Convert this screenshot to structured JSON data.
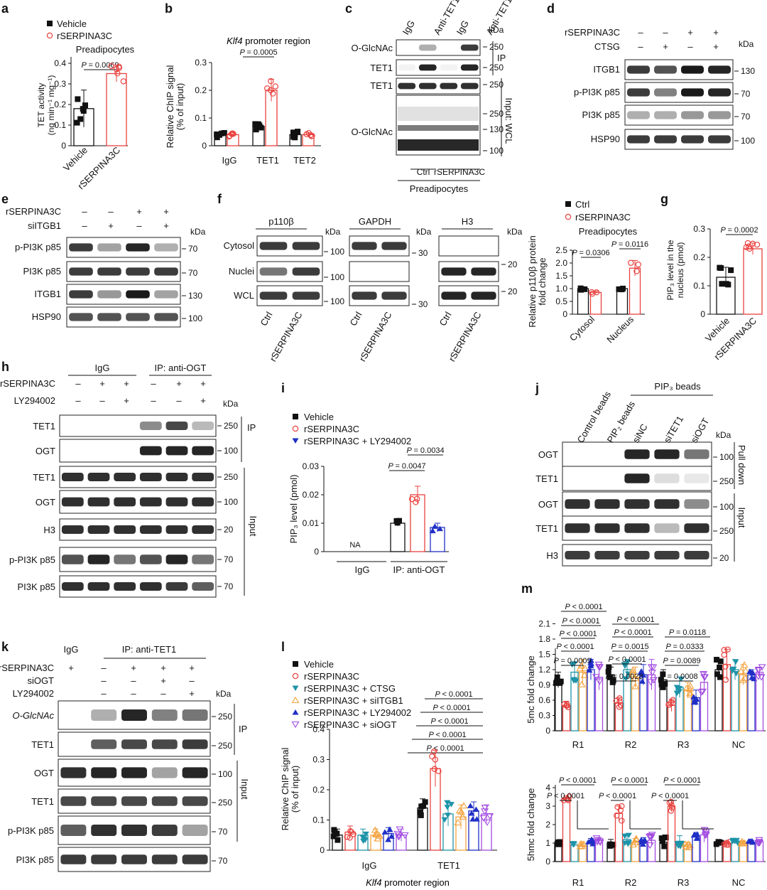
{
  "colors": {
    "red": "#e8423f",
    "teal": "#1e93a8",
    "orange": "#f4a340",
    "blue": "#1f2fc6",
    "purple": "#a24be0",
    "black": "#111111"
  },
  "panels": {
    "a": {
      "letter": "a",
      "legend": [
        "Vehicle",
        "rSERPINA3C"
      ],
      "subtitle": "Preadipocytes",
      "pval": "= 0.0069",
      "ylabel": [
        "TET activity",
        "(ng min⁻¹ mg⁻¹)"
      ],
      "ticks": [
        "0",
        "0.1",
        "0.2",
        "0.3",
        "0.4"
      ],
      "xlabels": [
        "Vehicle",
        "rSERPINA3C"
      ]
    },
    "b": {
      "letter": "b",
      "title_italic": "Klf4",
      "title_rest": " promoter region",
      "ylabel": [
        "Relative ChIP signal",
        "(% of input)"
      ],
      "ticks": [
        "0",
        "0.1",
        "0.2",
        "0.3"
      ],
      "pval": "= 0.0005",
      "xlabels": [
        "IgG",
        "TET1",
        "TET2"
      ]
    },
    "c": {
      "letter": "c",
      "lanes": [
        "IgG",
        "Anti-TET1",
        "IgG",
        "Anti-TET1"
      ],
      "kda": "kDa",
      "rows": [
        "O-GlcNAc",
        "TET1",
        "TET1",
        "O-GlcNAc"
      ],
      "markers": [
        "250",
        "250",
        "250",
        "250",
        "130",
        "100"
      ],
      "ip": "IP",
      "input": "Input: WCL",
      "groups": [
        "Ctrl",
        "rSERPINA3C"
      ],
      "cell": "Preadipocytes"
    },
    "d": {
      "letter": "d",
      "conds": [
        "rSERPINA3C",
        "CTSG"
      ],
      "signs": [
        [
          "–",
          "–",
          "+",
          "+"
        ],
        [
          "–",
          "+",
          "–",
          "+"
        ]
      ],
      "kda": "kDa",
      "rows": [
        "ITGB1",
        "p-PI3K p85",
        "PI3K p85",
        "HSP90"
      ],
      "markers": [
        "130",
        "70",
        "70",
        "100"
      ]
    },
    "e": {
      "letter": "e",
      "conds": [
        "rSERPINA3C",
        "siITGB1"
      ],
      "signs": [
        [
          "–",
          "–",
          "+",
          "+"
        ],
        [
          "–",
          "+",
          "–",
          "+"
        ]
      ],
      "kda": "kDa",
      "rows": [
        "p-PI3K p85",
        "PI3K p85",
        "ITGB1",
        "HSP90"
      ],
      "markers": [
        "70",
        "70",
        "130",
        "100"
      ]
    },
    "f": {
      "letter": "f",
      "heads": [
        "p110β",
        "GAPDH",
        "H3"
      ],
      "rows": [
        "Cytosol",
        "Nuclei",
        "WCL"
      ],
      "kda": "kDa",
      "m1": [
        "100",
        "100",
        "100"
      ],
      "m2": [
        "30",
        "30"
      ],
      "m3": [
        "20",
        "20"
      ],
      "lanes": [
        "Ctrl",
        "rSERPINA3C"
      ],
      "legend": [
        "Ctrl",
        "rSERPINA3C"
      ],
      "subtitle": "Preadipocytes",
      "ylabel": [
        "Relative p110β protein",
        "fold change"
      ],
      "ticks": [
        "0",
        "0.5",
        "1.0",
        "1.5",
        "2.0",
        "2.5"
      ],
      "pvals": [
        "= 0.0306",
        "= 0.0116"
      ],
      "xlabels": [
        "Cytosol",
        "Nucleus"
      ]
    },
    "g": {
      "letter": "g",
      "ylabel": [
        "PIP₃ level in the",
        "nucleus (pmol)"
      ],
      "ticks": [
        "0",
        "0.1",
        "0.2",
        "0.3"
      ],
      "pval": "= 0.0002",
      "xlabels": [
        "Vehicle",
        "rSERPINA3C"
      ]
    },
    "h": {
      "letter": "h",
      "groups": [
        "IgG",
        "IP: anti-OGT"
      ],
      "conds": [
        "rSERPINA3C",
        "LY294002"
      ],
      "signs": [
        [
          "–",
          "+",
          "+",
          "–",
          "+",
          "+"
        ],
        [
          "–",
          "–",
          "+",
          "–",
          "–",
          "+"
        ]
      ],
      "kda": "kDa",
      "rows": [
        "TET1",
        "OGT",
        "TET1",
        "OGT",
        "H3",
        "p-PI3K p85",
        "PI3K p85"
      ],
      "markers": [
        "250",
        "100",
        "250",
        "100",
        "20",
        "70",
        "70"
      ],
      "ip": "IP",
      "input": "Input"
    },
    "i": {
      "letter": "i",
      "legend": [
        "Vehicle",
        "rSERPINA3C",
        "rSERPINA3C + LY294002"
      ],
      "pvals": [
        "= 0.0034",
        "= 0.0047"
      ],
      "ylabel": "PIP₃ level (pmol)",
      "ticks": [
        "0",
        "0.01",
        "0.02",
        "0.03"
      ],
      "na": "NA",
      "xlabels": [
        "IgG",
        "IP: anti-OGT"
      ]
    },
    "j": {
      "letter": "j",
      "lanes": [
        "Control beads",
        "PIP₂ beads",
        "siNC",
        "siTET1",
        "siOGT"
      ],
      "group": "PIP₃ beads",
      "kda": "kDa",
      "rows": [
        "OGT",
        "TET1",
        "OGT",
        "TET1",
        "H3"
      ],
      "markers": [
        "100",
        "250",
        "100",
        "250",
        "20"
      ],
      "pulldown": "Pull down",
      "input": "Input"
    },
    "k": {
      "letter": "k",
      "igg": "IgG",
      "group": "IP: anti-TET1",
      "conds": [
        "rSERPINA3C",
        "siOGT",
        "LY294002"
      ],
      "signs": [
        [
          "+",
          "–",
          "+",
          "+",
          "+"
        ],
        [
          "",
          "–",
          "–",
          "+",
          "–"
        ],
        [
          "",
          "–",
          "–",
          "–",
          "+"
        ]
      ],
      "kda": "kDa",
      "rows": [
        "O-GlcNAc",
        "TET1",
        "OGT",
        "TET1",
        "p-PI3K p85",
        "PI3K p85"
      ],
      "markers": [
        "250",
        "250",
        "100",
        "250",
        "70",
        "70"
      ],
      "ip": "IP",
      "input": "Input"
    },
    "l": {
      "letter": "l",
      "legend": [
        "Vehicle",
        "rSERPINA3C",
        "rSERPINA3C + CTSG",
        "rSERPINA3C + siITGB1",
        "rSERPINA3C + LY294002",
        "rSERPINA3C + siOGT"
      ],
      "pvals": [
        "< 0.0001",
        "< 0.0001",
        "< 0.0001",
        "< 0.0001",
        "< 0.0001"
      ],
      "ylabel": [
        "Relative ChIP signal",
        "(% of input)"
      ],
      "ticks": [
        "0",
        "0.1",
        "0.2",
        "0.3",
        "0.4"
      ],
      "xlabels": [
        "IgG",
        "TET1"
      ],
      "xtitle_italic": "Klf4",
      "xtitle_rest": " promoter region"
    },
    "m": {
      "letter": "m",
      "top_ylabel": "5mc fold change",
      "top_ticks": [
        "0",
        "0.3",
        "0.6",
        "0.9",
        "1.2",
        "1.5",
        "1.8",
        "2.1"
      ],
      "bot_ylabel": "5hmc fold change",
      "bot_ticks": [
        "0",
        "1",
        "2",
        "3",
        "4"
      ],
      "regions": [
        "R1",
        "R2",
        "R3",
        "NC"
      ],
      "r1_pvals": [
        "< 0.0001",
        "< 0.0001",
        "< 0.0001",
        "< 0.0001",
        "= 0.0009"
      ],
      "r2_pvals": [
        "< 0.0001",
        "< 0.0001",
        "= 0.0015",
        "< 0.0001",
        "= 0.0028"
      ],
      "r3_pvals": [
        "= 0.0118",
        "= 0.0333",
        "= 0.0089",
        "= 0.0008"
      ],
      "bot_pvals": [
        "< 0.0001",
        "< 0.0001",
        "< 0.0001",
        "< 0.0001",
        "< 0.0001",
        "< 0.0001"
      ]
    }
  },
  "chart_data": [
    {
      "panel": "a",
      "type": "bar",
      "title": "Preadipocytes",
      "ylabel": "TET activity (ng min-1 mg-1)",
      "ylim": [
        0,
        0.4
      ],
      "categories": [
        "Vehicle",
        "rSERPINA3C"
      ],
      "values": [
        0.18,
        0.35
      ],
      "errors": [
        0.09,
        0.04
      ]
    },
    {
      "panel": "b",
      "type": "bar",
      "title": "Klf4 promoter region",
      "ylabel": "Relative ChIP signal (% of input)",
      "ylim": [
        0,
        0.3
      ],
      "categories": [
        "IgG",
        "TET1",
        "TET2"
      ],
      "series": [
        {
          "name": "Vehicle",
          "values": [
            0.04,
            0.07,
            0.04
          ],
          "errors": [
            0.01,
            0.015,
            0.015
          ]
        },
        {
          "name": "rSERPINA3C",
          "values": [
            0.04,
            0.2,
            0.04
          ],
          "errors": [
            0.008,
            0.04,
            0.006
          ]
        }
      ]
    },
    {
      "panel": "f",
      "type": "bar",
      "title": "Preadipocytes",
      "ylabel": "Relative p110β protein fold change",
      "ylim": [
        0,
        2.5
      ],
      "categories": [
        "Cytosol",
        "Nucleus"
      ],
      "series": [
        {
          "name": "Ctrl",
          "values": [
            1.0,
            1.0
          ],
          "errors": [
            0.05,
            0.04
          ]
        },
        {
          "name": "rSERPINA3C",
          "values": [
            0.85,
            1.8
          ],
          "errors": [
            0.05,
            0.3
          ]
        }
      ]
    },
    {
      "panel": "g",
      "type": "bar",
      "ylabel": "PIP3 level in the nucleus (pmol)",
      "ylim": [
        0,
        0.3
      ],
      "categories": [
        "Vehicle",
        "rSERPINA3C"
      ],
      "values": [
        0.13,
        0.23
      ],
      "errors": [
        0.035,
        0.02
      ]
    },
    {
      "panel": "i",
      "type": "bar",
      "ylabel": "PIP3 level (pmol)",
      "ylim": [
        0,
        0.03
      ],
      "categories": [
        "IgG",
        "IP: anti-OGT"
      ],
      "series": [
        {
          "name": "Vehicle",
          "values": [
            0,
            0.01
          ],
          "errors": [
            0,
            0.001
          ]
        },
        {
          "name": "rSERPINA3C",
          "values": [
            0,
            0.02
          ],
          "errors": [
            0,
            0.003
          ]
        },
        {
          "name": "rSERPINA3C + LY294002",
          "values": [
            0,
            0.0085
          ],
          "errors": [
            0,
            0.0015
          ]
        }
      ]
    },
    {
      "panel": "l",
      "type": "bar",
      "ylabel": "Relative ChIP signal (% of input)",
      "ylim": [
        0,
        0.4
      ],
      "categories": [
        "IgG",
        "TET1"
      ],
      "series": [
        {
          "name": "Vehicle",
          "values": [
            0.05,
            0.14
          ],
          "errors": [
            0.02,
            0.03
          ]
        },
        {
          "name": "rSERPINA3C",
          "values": [
            0.06,
            0.27
          ],
          "errors": [
            0.02,
            0.06
          ]
        },
        {
          "name": "rSERPINA3C + CTSG",
          "values": [
            0.05,
            0.12
          ],
          "errors": [
            0.02,
            0.04
          ]
        },
        {
          "name": "rSERPINA3C + siITGB1",
          "values": [
            0.05,
            0.11
          ],
          "errors": [
            0.02,
            0.04
          ]
        },
        {
          "name": "rSERPINA3C + LY294002",
          "values": [
            0.055,
            0.13
          ],
          "errors": [
            0.02,
            0.03
          ]
        },
        {
          "name": "rSERPINA3C + siOGT",
          "values": [
            0.05,
            0.12
          ],
          "errors": [
            0.02,
            0.03
          ]
        }
      ]
    },
    {
      "panel": "m-top",
      "type": "bar",
      "ylabel": "5mc fold change",
      "ylim": [
        0,
        2.1
      ],
      "categories": [
        "R1",
        "R2",
        "R3",
        "NC"
      ],
      "series": [
        {
          "name": "Vehicle",
          "values": [
            1.0,
            1.1,
            1.0,
            1.2
          ],
          "errors": [
            0.15,
            0.15,
            0.2,
            0.2
          ]
        },
        {
          "name": "rSERPINA3C",
          "values": [
            0.5,
            0.55,
            0.5,
            1.3
          ],
          "errors": [
            0.08,
            0.1,
            0.12,
            0.3
          ]
        },
        {
          "name": "rSERPINA3C + CTSG",
          "values": [
            1.15,
            1.2,
            0.85,
            1.2
          ],
          "errors": [
            0.2,
            0.2,
            0.2,
            0.2
          ]
        },
        {
          "name": "rSERPINA3C + siITGB1",
          "values": [
            1.15,
            1.05,
            0.8,
            1.1
          ],
          "errors": [
            0.25,
            0.2,
            0.15,
            0.2
          ]
        },
        {
          "name": "rSERPINA3C + LY294002",
          "values": [
            1.2,
            1.1,
            0.65,
            1.1
          ],
          "errors": [
            0.2,
            0.2,
            0.15,
            0.1
          ]
        },
        {
          "name": "rSERPINA3C + siOGT",
          "values": [
            1.05,
            1.1,
            0.95,
            1.15
          ],
          "errors": [
            0.25,
            0.3,
            0.2,
            0.1
          ]
        }
      ]
    },
    {
      "panel": "m-bottom",
      "type": "bar",
      "ylabel": "5hmc fold change",
      "ylim": [
        0,
        4
      ],
      "categories": [
        "R1",
        "R2",
        "R3",
        "NC"
      ],
      "series": [
        {
          "name": "Vehicle",
          "values": [
            1.0,
            1.0,
            1.05,
            1.0
          ],
          "errors": [
            0.1,
            0.2,
            0.3,
            0.1
          ]
        },
        {
          "name": "rSERPINA3C",
          "values": [
            3.4,
            2.6,
            3.0,
            1.0
          ],
          "errors": [
            0.15,
            0.4,
            0.3,
            0.1
          ]
        },
        {
          "name": "rSERPINA3C + CTSG",
          "values": [
            0.9,
            1.2,
            1.1,
            1.05
          ],
          "errors": [
            0.1,
            0.3,
            0.3,
            0.1
          ]
        },
        {
          "name": "rSERPINA3C + siITGB1",
          "values": [
            0.85,
            1.05,
            0.9,
            1.0
          ],
          "errors": [
            0.15,
            0.2,
            0.15,
            0.1
          ]
        },
        {
          "name": "rSERPINA3C + LY294002",
          "values": [
            1.1,
            1.1,
            1.35,
            1.05
          ],
          "errors": [
            0.15,
            0.2,
            0.2,
            0.1
          ]
        },
        {
          "name": "rSERPINA3C + siOGT",
          "values": [
            1.15,
            1.15,
            1.45,
            1.1
          ],
          "errors": [
            0.15,
            0.3,
            0.4,
            0.1
          ]
        }
      ]
    }
  ]
}
